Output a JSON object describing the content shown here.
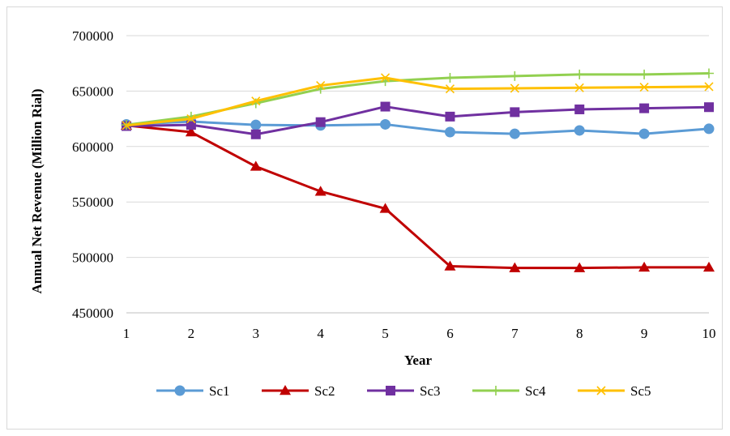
{
  "chart_data": {
    "type": "line",
    "title": "",
    "xlabel": "Year",
    "ylabel": "Annual Net Revenue (Million Rial)",
    "x": [
      1,
      2,
      3,
      4,
      5,
      6,
      7,
      8,
      9,
      10
    ],
    "ylim": [
      450000,
      700000
    ],
    "yticks": [
      450000,
      500000,
      550000,
      600000,
      650000,
      700000
    ],
    "grid": "horizontal",
    "legend_position": "bottom",
    "series": [
      {
        "name": "Sc1",
        "color": "#5B9BD5",
        "marker": "circle",
        "values": [
          620000,
          622500,
          619500,
          619000,
          620000,
          613000,
          611500,
          614500,
          611500,
          616000
        ]
      },
      {
        "name": "Sc2",
        "color": "#C00000",
        "marker": "triangle",
        "values": [
          619000,
          613000,
          582000,
          559500,
          544000,
          492000,
          490500,
          490500,
          491000,
          491000
        ]
      },
      {
        "name": "Sc3",
        "color": "#7030A0",
        "marker": "square",
        "values": [
          618500,
          619500,
          611000,
          622000,
          636000,
          627000,
          631000,
          633500,
          634500,
          635500
        ]
      },
      {
        "name": "Sc4",
        "color": "#92D050",
        "marker": "plus",
        "values": [
          619500,
          627000,
          639000,
          652000,
          659000,
          662000,
          663500,
          665000,
          665000,
          666000
        ]
      },
      {
        "name": "Sc5",
        "color": "#FFC000",
        "marker": "x",
        "values": [
          619000,
          625000,
          641000,
          655000,
          662000,
          652000,
          652500,
          653000,
          653500,
          654000
        ]
      }
    ]
  }
}
